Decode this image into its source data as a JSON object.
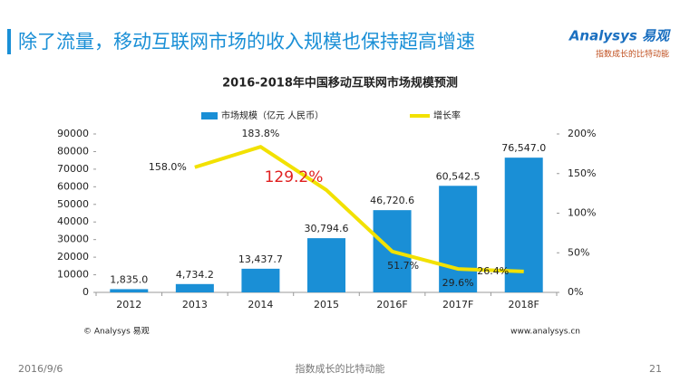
{
  "header": {
    "title": "除了流量，移动互联网市场的收入规模也保持超高增速",
    "logo": "Analysys 易观",
    "slogan": "指数成长的比特动能"
  },
  "chart_data": {
    "type": "bar",
    "title": "2016-2018年中国移动互联网市场规模预测",
    "categories": [
      "2012",
      "2013",
      "2014",
      "2015",
      "2016F",
      "2017F",
      "2018F"
    ],
    "series": [
      {
        "name": "市场规模（亿元 人民币）",
        "color": "#1a8fd6",
        "values": [
          1835.0,
          4734.2,
          13437.7,
          30794.6,
          46720.6,
          60542.5,
          76547.0
        ],
        "value_labels": [
          "1,835.0",
          "4,734.2",
          "13,437.7",
          "30,794.6",
          "46,720.6",
          "60,542.5",
          "76,547.0"
        ]
      },
      {
        "name": "增长率",
        "type": "line",
        "axis": "y2",
        "color": "#f2e100",
        "values": [
          null,
          158.0,
          183.8,
          129.2,
          51.7,
          29.6,
          26.4
        ],
        "value_labels": [
          null,
          "158.0%",
          "183.8%",
          "129.2%",
          "51.7%",
          "29.6%",
          "26.4%"
        ]
      }
    ],
    "ylim": [
      0,
      90000
    ],
    "yticks": [
      0,
      10000,
      20000,
      30000,
      40000,
      50000,
      60000,
      70000,
      80000,
      90000
    ],
    "y2lim": [
      0,
      200
    ],
    "y2ticks": [
      {
        "value": 0,
        "label": "0%"
      },
      {
        "value": 50,
        "label": "50%"
      },
      {
        "value": 100,
        "label": "100%"
      },
      {
        "value": 150,
        "label": "150%"
      },
      {
        "value": 200,
        "label": "200%"
      }
    ],
    "legend": "top",
    "source": "© Analysys 易观",
    "website": "www.analysys.cn"
  },
  "footer": {
    "date": "2016/9/6",
    "center": "指数成长的比特动能",
    "page": "21"
  }
}
